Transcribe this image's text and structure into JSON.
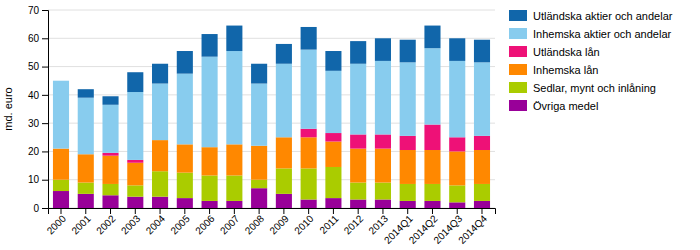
{
  "chart_data": {
    "type": "bar",
    "stacked": true,
    "categories": [
      "2000",
      "2001",
      "2002",
      "2003",
      "2004",
      "2005",
      "2006",
      "2007",
      "2008",
      "2009",
      "2010",
      "2011",
      "2012",
      "2013",
      "2014Q1",
      "2014Q2",
      "2014Q3",
      "2014Q4"
    ],
    "series": [
      {
        "name": "Övriga medel",
        "color": "#990099",
        "values": [
          6,
          5,
          4.5,
          4,
          4,
          3.5,
          2.5,
          2.5,
          7,
          5,
          3,
          3.5,
          3,
          3,
          2.5,
          2.5,
          2,
          2.5
        ]
      },
      {
        "name": "Sedlar, mynt och inlåning",
        "color": "#aacc00",
        "values": [
          4,
          4,
          4,
          4,
          9,
          9,
          9,
          9,
          3,
          9,
          11,
          11,
          6,
          6,
          6,
          6,
          6,
          6
        ]
      },
      {
        "name": "Inhemska lån",
        "color": "#ff8800",
        "values": [
          11,
          10,
          10,
          8,
          11,
          10,
          10,
          11,
          12,
          11,
          11,
          9,
          12,
          12,
          12,
          12,
          12,
          12
        ]
      },
      {
        "name": "Utländska lån",
        "color": "#ee1177",
        "values": [
          0,
          0,
          1,
          1,
          0,
          0,
          0,
          0,
          0,
          0,
          3,
          3,
          5,
          5,
          5,
          9,
          5,
          5
        ]
      },
      {
        "name": "Inhemska aktier och andelar",
        "color": "#88ccee",
        "values": [
          24,
          20,
          17,
          24,
          20,
          25,
          32,
          33,
          22,
          26,
          28,
          22,
          25,
          26,
          26,
          27,
          27,
          26
        ]
      },
      {
        "name": "Utländska aktier och andelar",
        "color": "#1166aa",
        "values": [
          0,
          3,
          3,
          7,
          7,
          8,
          8,
          9,
          7,
          7,
          8,
          7,
          8,
          8,
          8,
          8,
          8,
          8
        ]
      }
    ],
    "ylabel": "md. euro",
    "ylim": [
      0,
      70
    ],
    "yticks": [
      0,
      10,
      20,
      30,
      40,
      50,
      60,
      70
    ],
    "grid": true,
    "legend": "upper right"
  }
}
